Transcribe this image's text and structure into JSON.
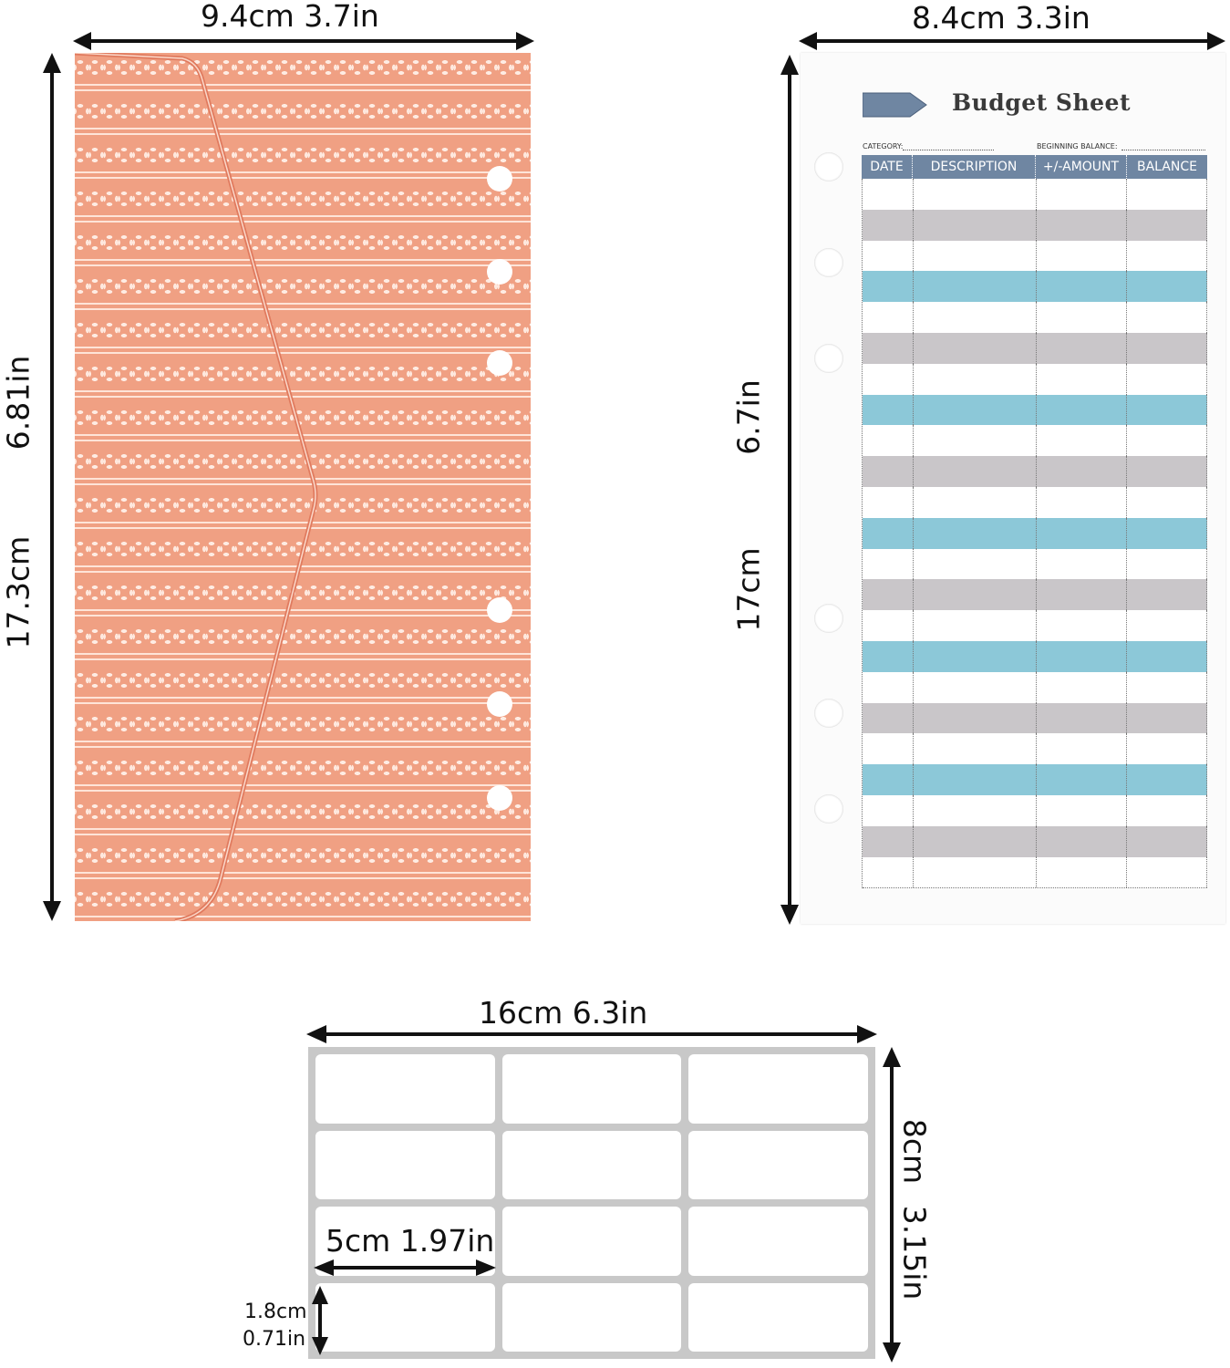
{
  "envelope": {
    "width_label": "9.4cm    3.7in",
    "height_cm": "17.3cm",
    "height_in": "6.81in",
    "colors": {
      "base": "#f0a083",
      "pattern": "#fff0e8"
    }
  },
  "budget_sheet": {
    "width_label": "8.4cm    3.3in",
    "height_cm": "17cm",
    "height_in": "6.7in",
    "title": "Budget Sheet",
    "category_label": "CATEGORY:",
    "beginning_balance_label": "BEGINNING BALANCE:",
    "columns": [
      "DATE",
      "DESCRIPTION",
      "+/-AMOUNT",
      "BALANCE"
    ],
    "row_pattern": [
      "white",
      "gray",
      "white",
      "blue",
      "white",
      "gray",
      "white",
      "blue",
      "white",
      "gray",
      "white",
      "blue",
      "white",
      "gray",
      "white",
      "blue",
      "white",
      "gray",
      "white",
      "blue",
      "white",
      "gray",
      "white"
    ],
    "colors": {
      "header": "#6f86a2",
      "gray": "#c9c6c9",
      "blue": "#8cc8d8",
      "white": "#ffffff"
    }
  },
  "label_sheet": {
    "width_label": "16cm       6.3in",
    "height_cm": "8cm",
    "height_in": "3.15in",
    "label_width": "5cm  1.97in",
    "label_height_cm": "1.8cm",
    "label_height_in": "0.71in",
    "rows": 4,
    "cols": 3
  }
}
